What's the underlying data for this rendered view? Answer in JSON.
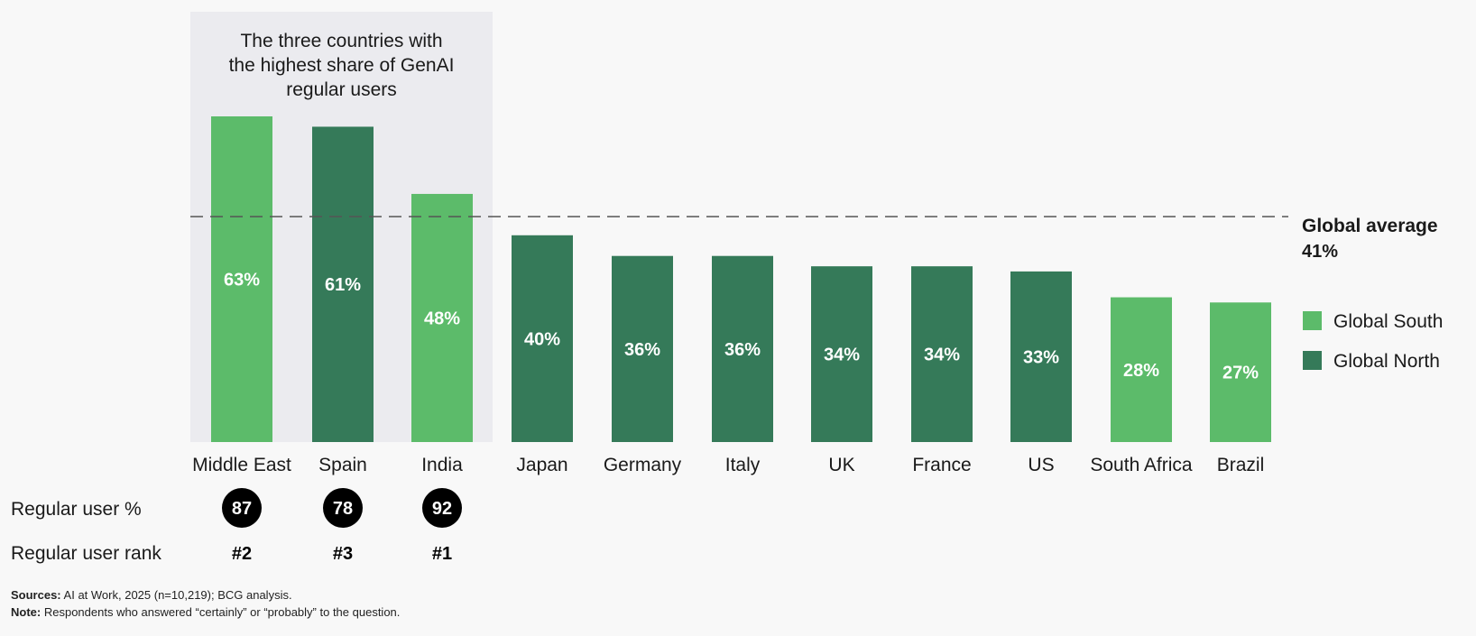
{
  "chart_data": {
    "type": "bar",
    "categories": [
      "Middle East",
      "Spain",
      "India",
      "Japan",
      "Germany",
      "Italy",
      "UK",
      "France",
      "US",
      "South Africa",
      "Brazil"
    ],
    "values": [
      63,
      61,
      48,
      40,
      36,
      36,
      34,
      34,
      33,
      28,
      27
    ],
    "value_labels": [
      "63%",
      "61%",
      "48%",
      "40%",
      "36%",
      "36%",
      "34%",
      "34%",
      "33%",
      "28%",
      "27%"
    ],
    "groups": [
      "Global South",
      "Global North",
      "Global South",
      "Global North",
      "Global North",
      "Global North",
      "Global North",
      "Global North",
      "Global North",
      "Global South",
      "Global South"
    ],
    "ylim": [
      0,
      63
    ],
    "title": "",
    "xlabel": "",
    "ylabel": "",
    "grid": false,
    "legend": {
      "placement": "right",
      "items": [
        {
          "name": "Global South",
          "color": "#5cbb6a"
        },
        {
          "name": "Global North",
          "color": "#357a59"
        }
      ]
    },
    "reference_line": {
      "label": "Global average",
      "value_label": "41%",
      "value": 41,
      "style": "dashed"
    },
    "highlight": {
      "text_lines": [
        "The three countries with",
        "the highest share of GenAI",
        "regular users"
      ],
      "categories": [
        "Middle East",
        "Spain",
        "India"
      ]
    },
    "annotation_rows": [
      {
        "label": "Regular user %",
        "values": [
          "87",
          "78",
          "92"
        ],
        "style": "circle"
      },
      {
        "label": "Regular user rank",
        "values": [
          "#2",
          "#3",
          "#1"
        ],
        "style": "bold"
      }
    ]
  },
  "colors": {
    "global_south": "#5cbb6a",
    "global_north": "#357a59",
    "highlight_bg": "#ebebef",
    "background": "#f8f8f8"
  },
  "footnotes": {
    "sources_label": "Sources:",
    "sources_text": "AI at Work, 2025 (n=10,219); BCG analysis.",
    "note_label": "Note:",
    "note_text": "Respondents who answered “certainly” or “probably” to the question."
  }
}
